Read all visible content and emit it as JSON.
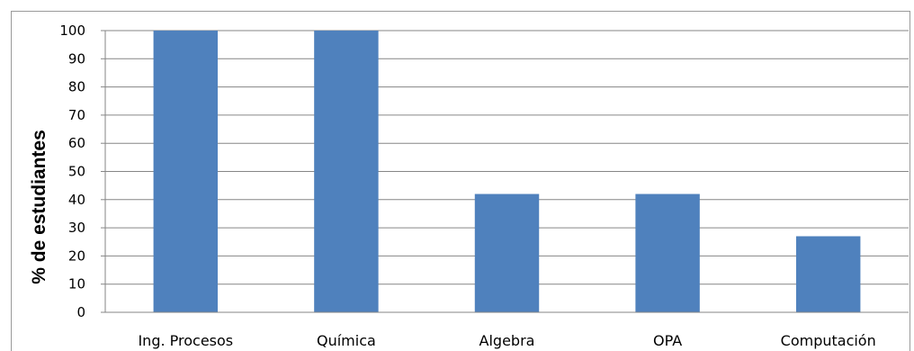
{
  "chart_data": {
    "type": "bar",
    "title": "",
    "xlabel": "",
    "ylabel": "% de estudiantes",
    "categories": [
      "Ing. Procesos",
      "Química",
      "Algebra",
      "OPA",
      "Computación"
    ],
    "values": [
      100,
      100,
      42,
      42,
      27
    ],
    "ylim": [
      0,
      100
    ],
    "yticks": [
      "0",
      "10",
      "20",
      "30",
      "40",
      "50",
      "60",
      "70",
      "80",
      "90",
      "100"
    ],
    "grid": true,
    "legend": "none",
    "bar_color": "#4f81bd"
  }
}
